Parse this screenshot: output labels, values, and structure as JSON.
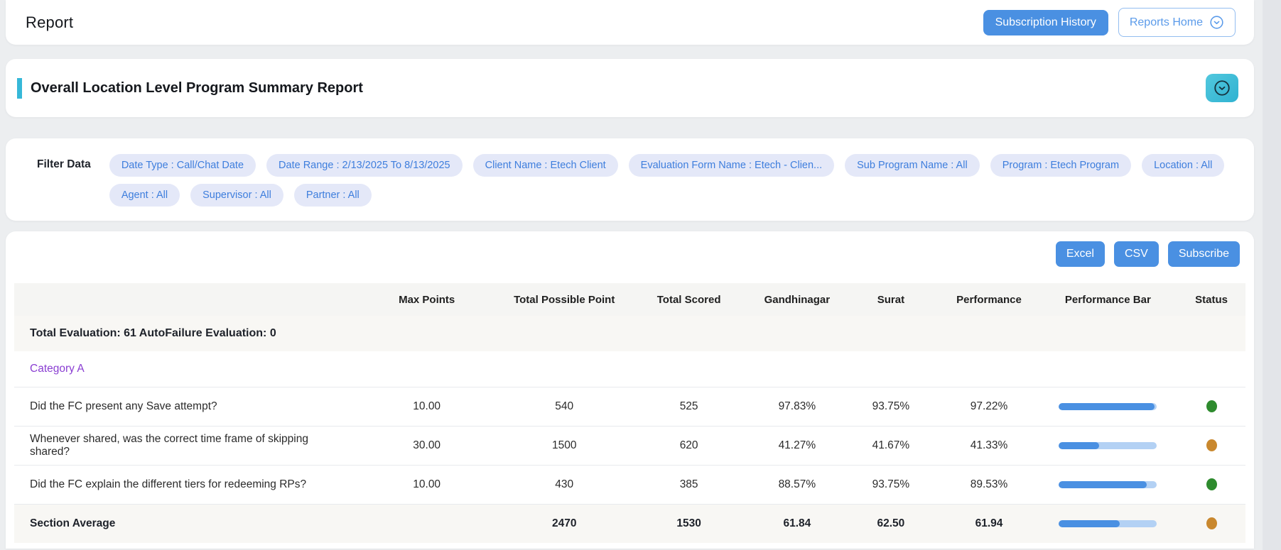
{
  "header": {
    "title": "Report",
    "subscription_history_label": "Subscription History",
    "reports_home_label": "Reports Home"
  },
  "report": {
    "title": "Overall Location Level Program Summary Report"
  },
  "filters": {
    "label": "Filter Data",
    "chips": [
      "Date Type : Call/Chat Date",
      "Date Range : 2/13/2025 To 8/13/2025",
      "Client Name : Etech Client",
      "Evaluation Form Name : Etech - Clien...",
      "Sub Program Name : All",
      "Program : Etech Program",
      "Location : All",
      "Agent : All",
      "Supervisor : All",
      "Partner : All"
    ]
  },
  "export": {
    "excel_label": "Excel",
    "csv_label": "CSV",
    "subscribe_label": "Subscribe"
  },
  "table": {
    "columns": [
      "Max Points",
      "Total Possible Point",
      "Total Scored",
      "Gandhinagar",
      "Surat",
      "Performance",
      "Performance Bar",
      "Status"
    ],
    "summary_text": "Total Evaluation: 61 AutoFailure Evaluation: 0",
    "category_label": "Category A",
    "rows": [
      {
        "question": "Did the FC present any Save attempt?",
        "max_points": "10.00",
        "total_possible": "540",
        "total_scored": "525",
        "gandhinagar": "97.83%",
        "surat": "93.75%",
        "performance": "97.22%",
        "bar_pct": 97.22,
        "status": "green"
      },
      {
        "question": "Whenever shared, was the correct time frame of skipping shared?",
        "max_points": "30.00",
        "total_possible": "1500",
        "total_scored": "620",
        "gandhinagar": "41.27%",
        "surat": "41.67%",
        "performance": "41.33%",
        "bar_pct": 41.33,
        "status": "orange"
      },
      {
        "question": "Did the FC explain the different tiers for redeeming RPs?",
        "max_points": "10.00",
        "total_possible": "430",
        "total_scored": "385",
        "gandhinagar": "88.57%",
        "surat": "93.75%",
        "performance": "89.53%",
        "bar_pct": 89.53,
        "status": "green"
      }
    ],
    "section_average": {
      "label": "Section Average",
      "total_possible": "2470",
      "total_scored": "1530",
      "gandhinagar": "61.84",
      "surat": "62.50",
      "performance": "61.94",
      "bar_pct": 61.94,
      "status": "orange"
    }
  },
  "colors": {
    "primary_blue": "#4a90e2",
    "teal_accent": "#36b8d8",
    "chip_bg": "#e4e8f8",
    "chip_text": "#3e7edd",
    "category_purple": "#8a3ed2",
    "status_green": "#2e8b2e",
    "status_orange": "#c9882e",
    "bar_fill": "#4a90e2",
    "bar_track": "#b3d1f4"
  }
}
